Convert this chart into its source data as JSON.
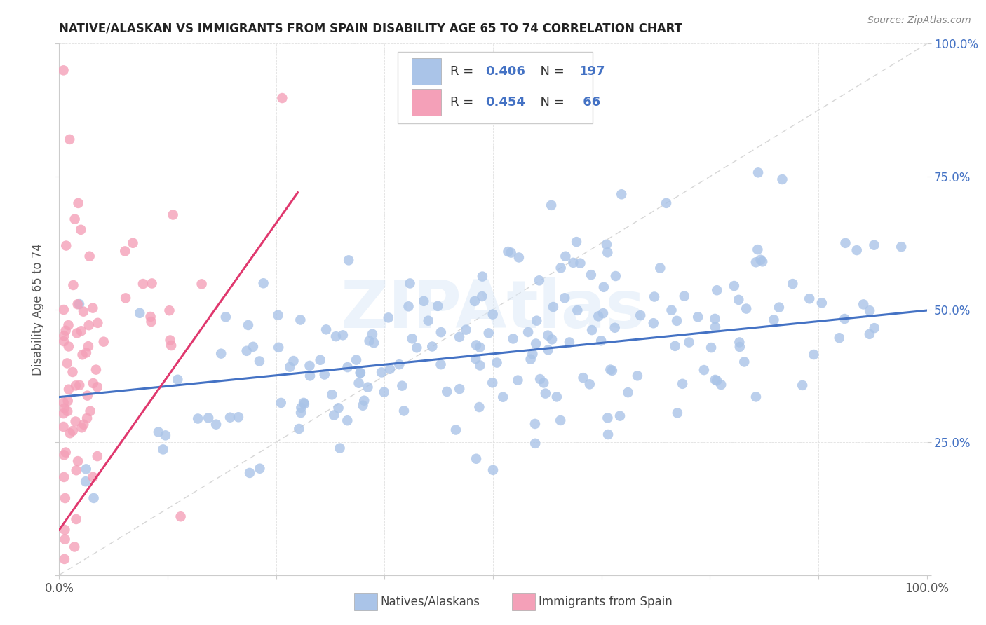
{
  "title": "NATIVE/ALASKAN VS IMMIGRANTS FROM SPAIN DISABILITY AGE 65 TO 74 CORRELATION CHART",
  "source": "Source: ZipAtlas.com",
  "ylabel": "Disability Age 65 to 74",
  "xlim": [
    0.0,
    1.0
  ],
  "ylim": [
    0.0,
    1.0
  ],
  "blue_scatter_color": "#aac4e8",
  "pink_scatter_color": "#f4a0b8",
  "blue_line_color": "#4472c4",
  "pink_line_color": "#e0386e",
  "diagonal_color": "#cccccc",
  "watermark": "ZIPAtlas",
  "R_blue": 0.406,
  "N_blue": 197,
  "R_pink": 0.454,
  "N_pink": 66,
  "blue_line_x": [
    0.0,
    1.0
  ],
  "blue_line_y": [
    0.335,
    0.498
  ],
  "pink_line_x": [
    0.0,
    0.275
  ],
  "pink_line_y": [
    0.085,
    0.72
  ],
  "legend_R_N_color": "#4472c4",
  "legend_N_value_color": "#e84040",
  "title_color": "#222222",
  "source_color": "#888888",
  "ylabel_color": "#555555",
  "tick_label_color_left": "#555555",
  "tick_label_color_right": "#4472c4",
  "grid_color": "#e0e0e0",
  "seed_blue": 42,
  "seed_pink": 7
}
